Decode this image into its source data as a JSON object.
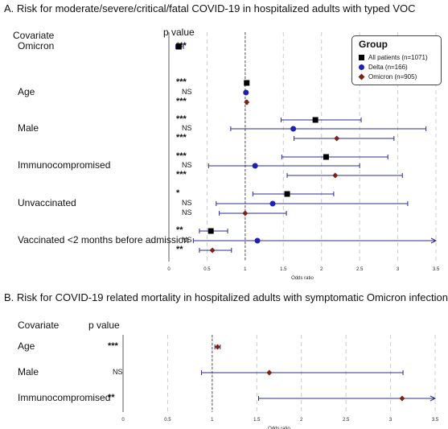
{
  "colors": {
    "all": "#000000",
    "delta": "#1f1fb4",
    "omicron": "#7a2418",
    "ci_line": "#2b2b8c",
    "grid": "#cccccc",
    "ref": "#555555"
  },
  "panel_a": {
    "title": "A. Risk for moderate/severe/critical/fatal COVID-19 in hospitalized adults with typed VOC",
    "covariate_header": "Covariate",
    "pvalue_header": "p value",
    "legend": {
      "title": "Group",
      "items": [
        "All patients (n=1071)",
        "Delta (n=166)",
        "Omicron (n=905)"
      ]
    }
  },
  "panel_b": {
    "title": "B. Risk for COVID-19 related mortality in hospitalized adults with symptomatic Omicron infection",
    "covariate_header": "Covariate",
    "pvalue_header": "p value"
  },
  "chart_data": [
    {
      "type": "forest",
      "title": "A. Risk for moderate/severe/critical/fatal COVID-19 in hospitalized adults with typed VOC",
      "xlabel": "Odds ratio",
      "xlim": [
        0,
        3.5
      ],
      "xticks": [
        "0",
        "0.5",
        "1",
        "1.5",
        "2",
        "2.5",
        "3",
        "3.5"
      ],
      "reference_line": 1,
      "grid": true,
      "legend_position": "top-right",
      "series_names": [
        "All patients (n=1071)",
        "Delta (n=166)",
        "Omicron (n=905)"
      ],
      "rows": [
        {
          "covariate": "Omicron",
          "entries": [
            {
              "series": "All patients (n=1071)",
              "or": 0.13,
              "lo": 0.09,
              "hi": 0.19,
              "p": "***"
            }
          ]
        },
        {
          "covariate": "Age",
          "entries": [
            {
              "series": "All patients (n=1071)",
              "or": 1.02,
              "lo": 1.01,
              "hi": 1.03,
              "p": "***"
            },
            {
              "series": "Delta (n=166)",
              "or": 1.01,
              "lo": 1.0,
              "hi": 1.02,
              "p": "NS"
            },
            {
              "series": "Omicron (n=905)",
              "or": 1.02,
              "lo": 1.01,
              "hi": 1.03,
              "p": "***"
            }
          ]
        },
        {
          "covariate": "Male",
          "entries": [
            {
              "series": "All patients (n=1071)",
              "or": 1.92,
              "lo": 1.47,
              "hi": 2.52,
              "p": "***"
            },
            {
              "series": "Delta (n=166)",
              "or": 1.63,
              "lo": 0.81,
              "hi": 3.37,
              "p": "NS"
            },
            {
              "series": "Omicron (n=905)",
              "or": 2.2,
              "lo": 1.64,
              "hi": 2.95,
              "p": "***"
            }
          ]
        },
        {
          "covariate": "Immunocompromised",
          "entries": [
            {
              "series": "All patients (n=1071)",
              "or": 2.06,
              "lo": 1.48,
              "hi": 2.87,
              "p": "***"
            },
            {
              "series": "Delta (n=166)",
              "or": 1.13,
              "lo": 0.52,
              "hi": 2.5,
              "p": "NS"
            },
            {
              "series": "Omicron (n=905)",
              "or": 2.18,
              "lo": 1.55,
              "hi": 3.06,
              "p": "***"
            }
          ]
        },
        {
          "covariate": "Unvaccinated",
          "entries": [
            {
              "series": "All patients (n=1071)",
              "or": 1.55,
              "lo": 1.1,
              "hi": 2.16,
              "p": "*"
            },
            {
              "series": "Delta (n=166)",
              "or": 1.36,
              "lo": 0.62,
              "hi": 3.13,
              "p": "NS"
            },
            {
              "series": "Omicron (n=905)",
              "or": 1.0,
              "lo": 0.66,
              "hi": 1.54,
              "p": "NS"
            }
          ]
        },
        {
          "covariate": "Vaccinated <2 months before admission",
          "entries": [
            {
              "series": "All patients (n=1071)",
              "or": 0.55,
              "lo": 0.4,
              "hi": 0.77,
              "p": "**"
            },
            {
              "series": "Delta (n=166)",
              "or": 1.16,
              "lo": 0.32,
              "hi": 3.5,
              "p": "NS",
              "hi_truncated": true
            },
            {
              "series": "Omicron (n=905)",
              "or": 0.57,
              "lo": 0.4,
              "hi": 0.82,
              "p": "**"
            }
          ]
        }
      ]
    },
    {
      "type": "forest",
      "title": "B. Risk for COVID-19 related mortality in hospitalized adults with symptomatic Omicron infection",
      "xlabel": "Odds ratio",
      "xlim": [
        0,
        3.5
      ],
      "xticks": [
        "0",
        "0.5",
        "1",
        "1.5",
        "2",
        "2.5",
        "3",
        "3.5"
      ],
      "reference_line": 1,
      "grid": true,
      "rows": [
        {
          "covariate": "Age",
          "entries": [
            {
              "or": 1.06,
              "lo": 1.03,
              "hi": 1.09,
              "p": "***"
            }
          ]
        },
        {
          "covariate": "Male",
          "entries": [
            {
              "or": 1.64,
              "lo": 0.88,
              "hi": 3.14,
              "p": "NS"
            }
          ]
        },
        {
          "covariate": "Immunocompromised",
          "entries": [
            {
              "or": 3.13,
              "lo": 1.52,
              "hi": 3.5,
              "p": "**",
              "hi_truncated": true
            }
          ]
        }
      ]
    }
  ]
}
